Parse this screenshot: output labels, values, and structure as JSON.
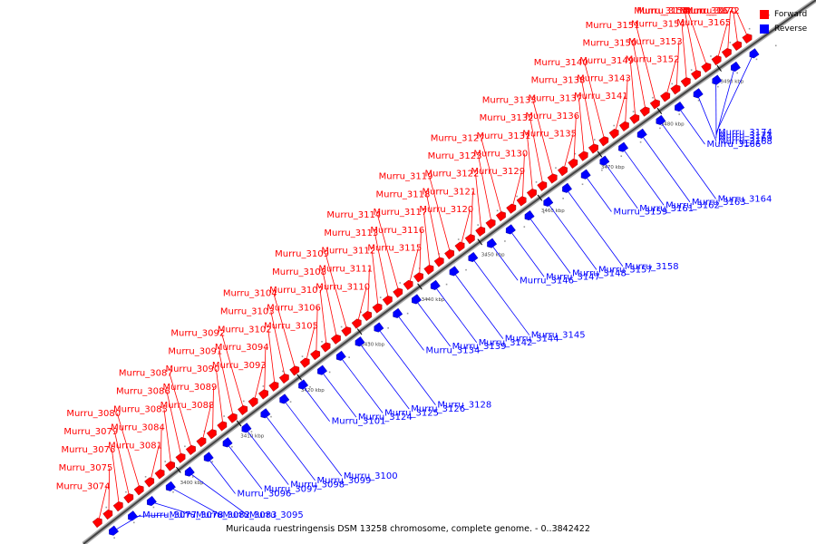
{
  "caption": "Muricauda ruestringensis DSM 13258 chromosome, complete genome. - 0..3842422",
  "legend": {
    "forward_label": "Forward",
    "reverse_label": "Reverse",
    "forward_color": "#ff0000",
    "reverse_color": "#0000ff"
  },
  "line_colors": {
    "forward": "#ff0000",
    "reverse": "#0000ff"
  },
  "ticks": [
    "3400 kbp",
    "3410 kbp",
    "3420 kbp",
    "3430 kbp",
    "3440 kbp",
    "3450 kbp",
    "3460 kbp",
    "3470 kbp",
    "3480 kbp",
    "3490 kbp"
  ],
  "forward_labels": [
    "Murru_3074",
    "Murru_3075",
    "Murru_3076",
    "Murru_3079",
    "Murru_3080",
    "Murru_3081",
    "Murru_3084",
    "Murru_3085",
    "Murru_3086",
    "Murru_3087",
    "Murru_3088",
    "Murru_3089",
    "Murru_3090",
    "Murru_3091",
    "Murru_3092",
    "Murru_3093",
    "Murru_3094",
    "Murru_3102",
    "Murru_3103",
    "Murru_3104",
    "Murru_3105",
    "Murru_3106",
    "Murru_3107",
    "Murru_3108",
    "Murru_3109",
    "Murru_3110",
    "Murru_3111",
    "Murru_3112",
    "Murru_3113",
    "Murru_3114",
    "Murru_3115",
    "Murru_3116",
    "Murru_3117",
    "Murru_3118",
    "Murru_3119",
    "Murru_3120",
    "Murru_3121",
    "Murru_3122",
    "Murru_3123",
    "Murru_3127",
    "Murru_3129",
    "Murru_3130",
    "Murru_3131",
    "Murru_3132",
    "Murru_3133",
    "Murru_3135",
    "Murru_3136",
    "Murru_3137",
    "Murru_3138",
    "Murru_3140",
    "Murru_3141",
    "Murru_3143",
    "Murru_3149",
    "Murru_3150",
    "Murru_3151",
    "Murru_3152",
    "Murru_3153",
    "Murru_3154",
    "Murru_3155",
    "Murru_3160",
    "Murru_3165",
    "Murru_3167",
    "Murru_3170",
    "Murru_3172"
  ],
  "reverse_labels": [
    "Murru_3077",
    "Murru_3078",
    "Murru_3082",
    "Murru_3083",
    "Murru_3095",
    "Murru_3096",
    "Murru_3097",
    "Murru_3098",
    "Murru_3099",
    "Murru_3100",
    "Murru_3101",
    "Murru_3124",
    "Murru_3125",
    "Murru_3126",
    "Murru_3128",
    "Murru_3134",
    "Murru_3139",
    "Murru_3142",
    "Murru_3144",
    "Murru_3145",
    "Murru_3146",
    "Murru_3147",
    "Murru_3148",
    "Murru_3157",
    "Murru_3158",
    "Murru_3159",
    "Murru_3161",
    "Murru_3162",
    "Murru_3163",
    "Murru_3164",
    "Murru_3166",
    "Murru_3168",
    "Murru_3169",
    "Murru_3171",
    "Murru_3174"
  ]
}
